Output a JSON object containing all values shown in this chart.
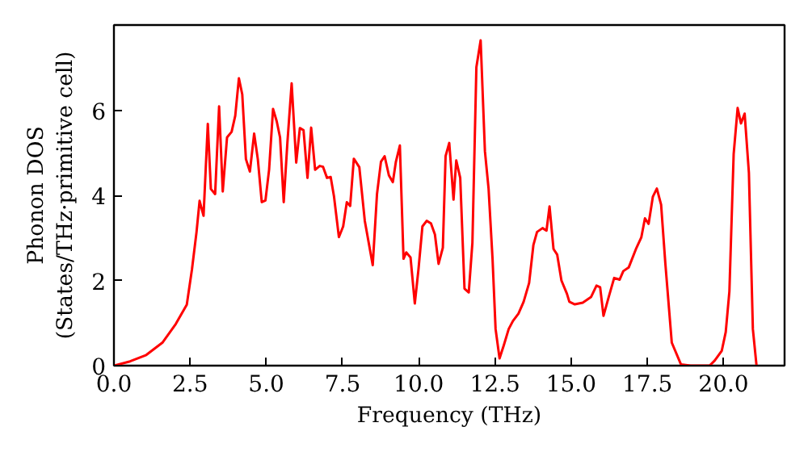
{
  "chart_data": {
    "type": "line",
    "xlabel": "Frequency (THz)",
    "ylabel": "Phonon DOS\n(States/THz·primitive cell)",
    "xlim": [
      0,
      22
    ],
    "ylim": [
      0,
      8
    ],
    "xticks": [
      {
        "value": 0,
        "label": "0.0"
      },
      {
        "value": 2.5,
        "label": "2.5"
      },
      {
        "value": 5,
        "label": "5.0"
      },
      {
        "value": 7.5,
        "label": "7.5"
      },
      {
        "value": 10,
        "label": "10.0"
      },
      {
        "value": 12.5,
        "label": "12.5"
      },
      {
        "value": 15,
        "label": "15.0"
      },
      {
        "value": 17.5,
        "label": "17.5"
      },
      {
        "value": 20,
        "label": "20.0"
      }
    ],
    "yticks": [
      0,
      2,
      4,
      6
    ],
    "grid": false,
    "marker": "none",
    "line_style": "solid",
    "series": [
      {
        "color": "#ff0000",
        "x": [
          0,
          0.53,
          1.06,
          1.59,
          2.03,
          2.39,
          2.56,
          2.71,
          2.81,
          2.94,
          3.08,
          3.18,
          3.32,
          3.45,
          3.57,
          3.71,
          3.86,
          3.98,
          4.1,
          4.21,
          4.33,
          4.46,
          4.6,
          4.72,
          4.85,
          4.97,
          5.09,
          5.22,
          5.34,
          5.45,
          5.57,
          5.69,
          5.83,
          5.98,
          6.1,
          6.22,
          6.35,
          6.47,
          6.6,
          6.75,
          6.86,
          6.99,
          7.11,
          7.22,
          7.38,
          7.52,
          7.64,
          7.75,
          7.87,
          8.05,
          8.23,
          8.49,
          8.63,
          8.76,
          8.88,
          9.02,
          9.15,
          9.25,
          9.38,
          9.5,
          9.59,
          9.73,
          9.87,
          9.99,
          10.12,
          10.26,
          10.4,
          10.53,
          10.65,
          10.79,
          10.88,
          11.0,
          11.14,
          11.23,
          11.36,
          11.5,
          11.64,
          11.76,
          11.89,
          12.03,
          12.17,
          12.29,
          12.42,
          12.52,
          12.65,
          12.79,
          12.95,
          13.09,
          13.27,
          13.44,
          13.62,
          13.76,
          13.88,
          14.06,
          14.19,
          14.29,
          14.42,
          14.54,
          14.68,
          14.86,
          14.94,
          15.12,
          15.38,
          15.65,
          15.83,
          15.95,
          16.06,
          16.23,
          16.41,
          16.59,
          16.71,
          16.89,
          17.12,
          17.3,
          17.42,
          17.54,
          17.68,
          17.81,
          17.95,
          18.09,
          18.3,
          18.6,
          18.92,
          19.54,
          19.71,
          19.94,
          20.07,
          20.19,
          20.33,
          20.46,
          20.57,
          20.69,
          20.83,
          20.96,
          21.08
        ],
        "values": [
          0,
          0.1,
          0.25,
          0.54,
          0.98,
          1.43,
          2.26,
          3.14,
          3.87,
          3.52,
          5.68,
          4.15,
          4.03,
          6.09,
          4.09,
          5.36,
          5.49,
          5.87,
          6.75,
          6.37,
          4.85,
          4.56,
          5.45,
          4.85,
          3.84,
          3.88,
          4.6,
          6.03,
          5.74,
          5.36,
          3.84,
          5.23,
          6.63,
          4.77,
          5.58,
          5.53,
          4.41,
          5.59,
          4.6,
          4.69,
          4.67,
          4.41,
          4.43,
          3.97,
          3.02,
          3.27,
          3.84,
          3.75,
          4.86,
          4.66,
          3.4,
          2.36,
          4.03,
          4.79,
          4.92,
          4.47,
          4.31,
          4.79,
          5.17,
          2.51,
          2.66,
          2.54,
          1.46,
          2.26,
          3.27,
          3.4,
          3.34,
          3.08,
          2.39,
          2.77,
          4.92,
          5.23,
          3.9,
          4.82,
          4.41,
          1.81,
          1.72,
          2.89,
          7.01,
          7.64,
          5.04,
          4.16,
          2.51,
          0.86,
          0.17,
          0.48,
          0.86,
          1.05,
          1.22,
          1.5,
          1.94,
          2.83,
          3.14,
          3.23,
          3.17,
          3.74,
          2.74,
          2.61,
          2.0,
          1.69,
          1.5,
          1.44,
          1.48,
          1.61,
          1.88,
          1.84,
          1.17,
          1.61,
          2.06,
          2.02,
          2.22,
          2.31,
          2.73,
          3.01,
          3.46,
          3.33,
          3.97,
          4.16,
          3.78,
          2.39,
          0.54,
          0.03,
          0,
          0,
          0.12,
          0.35,
          0.79,
          1.74,
          4.97,
          6.05,
          5.69,
          5.92,
          4.53,
          0.86,
          0
        ]
      }
    ]
  }
}
